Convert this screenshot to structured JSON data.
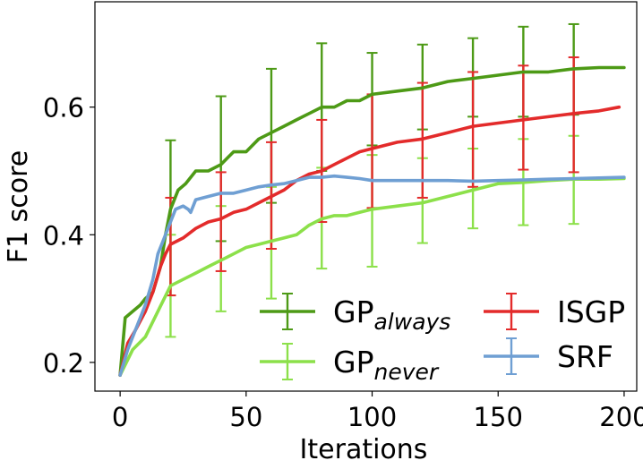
{
  "chart_data": {
    "type": "line",
    "title": "",
    "xlabel": "Iterations",
    "ylabel": "F1 score",
    "xlim": [
      -10,
      205
    ],
    "ylim": [
      0.155,
      0.765
    ],
    "xticks": [
      0,
      50,
      100,
      150,
      200
    ],
    "xtick_labels": [
      "0",
      "50",
      "100",
      "150",
      "200"
    ],
    "yticks": [
      0.2,
      0.4,
      0.6
    ],
    "ytick_labels": [
      "0.2",
      "0.4",
      "0.6"
    ],
    "grid": false,
    "legend_position": "bottom-right",
    "legend_columns": 2,
    "series": [
      {
        "name": "GP",
        "subscript": "always",
        "color": "#4d9a16",
        "x": [
          0,
          2,
          5,
          8,
          10,
          13,
          16,
          18,
          20,
          23,
          26,
          30,
          35,
          40,
          45,
          50,
          55,
          60,
          65,
          70,
          75,
          80,
          85,
          90,
          95,
          100,
          110,
          120,
          130,
          140,
          150,
          160,
          170,
          180,
          190,
          200
        ],
        "y": [
          0.18,
          0.27,
          0.28,
          0.29,
          0.3,
          0.31,
          0.35,
          0.4,
          0.44,
          0.47,
          0.48,
          0.5,
          0.5,
          0.51,
          0.53,
          0.53,
          0.55,
          0.56,
          0.57,
          0.58,
          0.59,
          0.6,
          0.6,
          0.61,
          0.61,
          0.62,
          0.625,
          0.63,
          0.64,
          0.645,
          0.65,
          0.655,
          0.655,
          0.66,
          0.662,
          0.662
        ],
        "error_bars": [
          {
            "x": 20,
            "lower": 0.305,
            "upper": 0.548
          },
          {
            "x": 40,
            "lower": 0.39,
            "upper": 0.617
          },
          {
            "x": 60,
            "lower": 0.45,
            "upper": 0.66
          },
          {
            "x": 80,
            "lower": 0.5,
            "upper": 0.7
          },
          {
            "x": 100,
            "lower": 0.54,
            "upper": 0.685
          },
          {
            "x": 120,
            "lower": 0.565,
            "upper": 0.698
          },
          {
            "x": 140,
            "lower": 0.585,
            "upper": 0.708
          },
          {
            "x": 160,
            "lower": 0.585,
            "upper": 0.726
          },
          {
            "x": 180,
            "lower": 0.588,
            "upper": 0.73
          }
        ]
      },
      {
        "name": "GP",
        "subscript": "never",
        "color": "#8ce04a",
        "x": [
          0,
          5,
          10,
          15,
          20,
          25,
          30,
          35,
          40,
          45,
          50,
          55,
          60,
          65,
          70,
          75,
          80,
          85,
          90,
          95,
          100,
          110,
          120,
          130,
          140,
          150,
          160,
          170,
          180,
          190,
          200
        ],
        "y": [
          0.18,
          0.22,
          0.24,
          0.28,
          0.32,
          0.33,
          0.34,
          0.35,
          0.36,
          0.37,
          0.38,
          0.385,
          0.39,
          0.395,
          0.4,
          0.415,
          0.425,
          0.43,
          0.43,
          0.435,
          0.44,
          0.445,
          0.45,
          0.46,
          0.47,
          0.48,
          0.482,
          0.485,
          0.487,
          0.487,
          0.488
        ],
        "error_bars": [
          {
            "x": 20,
            "lower": 0.24,
            "upper": 0.4
          },
          {
            "x": 40,
            "lower": 0.28,
            "upper": 0.445
          },
          {
            "x": 60,
            "lower": 0.3,
            "upper": 0.475
          },
          {
            "x": 80,
            "lower": 0.347,
            "upper": 0.505
          },
          {
            "x": 100,
            "lower": 0.35,
            "upper": 0.525
          },
          {
            "x": 120,
            "lower": 0.387,
            "upper": 0.52
          },
          {
            "x": 140,
            "lower": 0.41,
            "upper": 0.535
          },
          {
            "x": 160,
            "lower": 0.415,
            "upper": 0.55
          },
          {
            "x": 180,
            "lower": 0.417,
            "upper": 0.555
          }
        ]
      },
      {
        "name": "ISGP",
        "subscript": "",
        "color": "#e32b2b",
        "x": [
          0,
          3,
          6,
          10,
          13,
          16,
          18,
          20,
          25,
          30,
          35,
          40,
          45,
          50,
          55,
          60,
          65,
          70,
          75,
          80,
          85,
          90,
          95,
          100,
          110,
          120,
          130,
          140,
          150,
          160,
          170,
          180,
          190,
          198
        ],
        "y": [
          0.18,
          0.23,
          0.25,
          0.28,
          0.31,
          0.35,
          0.37,
          0.385,
          0.395,
          0.41,
          0.42,
          0.425,
          0.435,
          0.44,
          0.45,
          0.46,
          0.47,
          0.485,
          0.495,
          0.5,
          0.51,
          0.52,
          0.53,
          0.535,
          0.545,
          0.55,
          0.56,
          0.57,
          0.575,
          0.58,
          0.585,
          0.59,
          0.594,
          0.6
        ],
        "error_bars": [
          {
            "x": 20,
            "lower": 0.305,
            "upper": 0.458
          },
          {
            "x": 40,
            "lower": 0.343,
            "upper": 0.498
          },
          {
            "x": 60,
            "lower": 0.378,
            "upper": 0.545
          },
          {
            "x": 80,
            "lower": 0.42,
            "upper": 0.58
          },
          {
            "x": 100,
            "lower": 0.442,
            "upper": 0.62
          },
          {
            "x": 120,
            "lower": 0.458,
            "upper": 0.638
          },
          {
            "x": 140,
            "lower": 0.475,
            "upper": 0.655
          },
          {
            "x": 160,
            "lower": 0.502,
            "upper": 0.665
          },
          {
            "x": 180,
            "lower": 0.498,
            "upper": 0.678
          }
        ]
      },
      {
        "name": "SRF",
        "subscript": "",
        "color": "#6f9fd3",
        "x": [
          0,
          3,
          6,
          10,
          13,
          15,
          17,
          20,
          22,
          25,
          27,
          28,
          30,
          35,
          40,
          45,
          50,
          55,
          60,
          65,
          70,
          75,
          80,
          85,
          90,
          95,
          100,
          110,
          120,
          130,
          140,
          150,
          160,
          170,
          180,
          190,
          200
        ],
        "y": [
          0.18,
          0.22,
          0.25,
          0.29,
          0.33,
          0.37,
          0.39,
          0.42,
          0.44,
          0.445,
          0.44,
          0.435,
          0.455,
          0.46,
          0.465,
          0.465,
          0.47,
          0.475,
          0.478,
          0.48,
          0.485,
          0.49,
          0.49,
          0.492,
          0.49,
          0.488,
          0.485,
          0.485,
          0.485,
          0.485,
          0.484,
          0.485,
          0.486,
          0.487,
          0.488,
          0.489,
          0.49
        ],
        "error_bars": []
      }
    ]
  }
}
